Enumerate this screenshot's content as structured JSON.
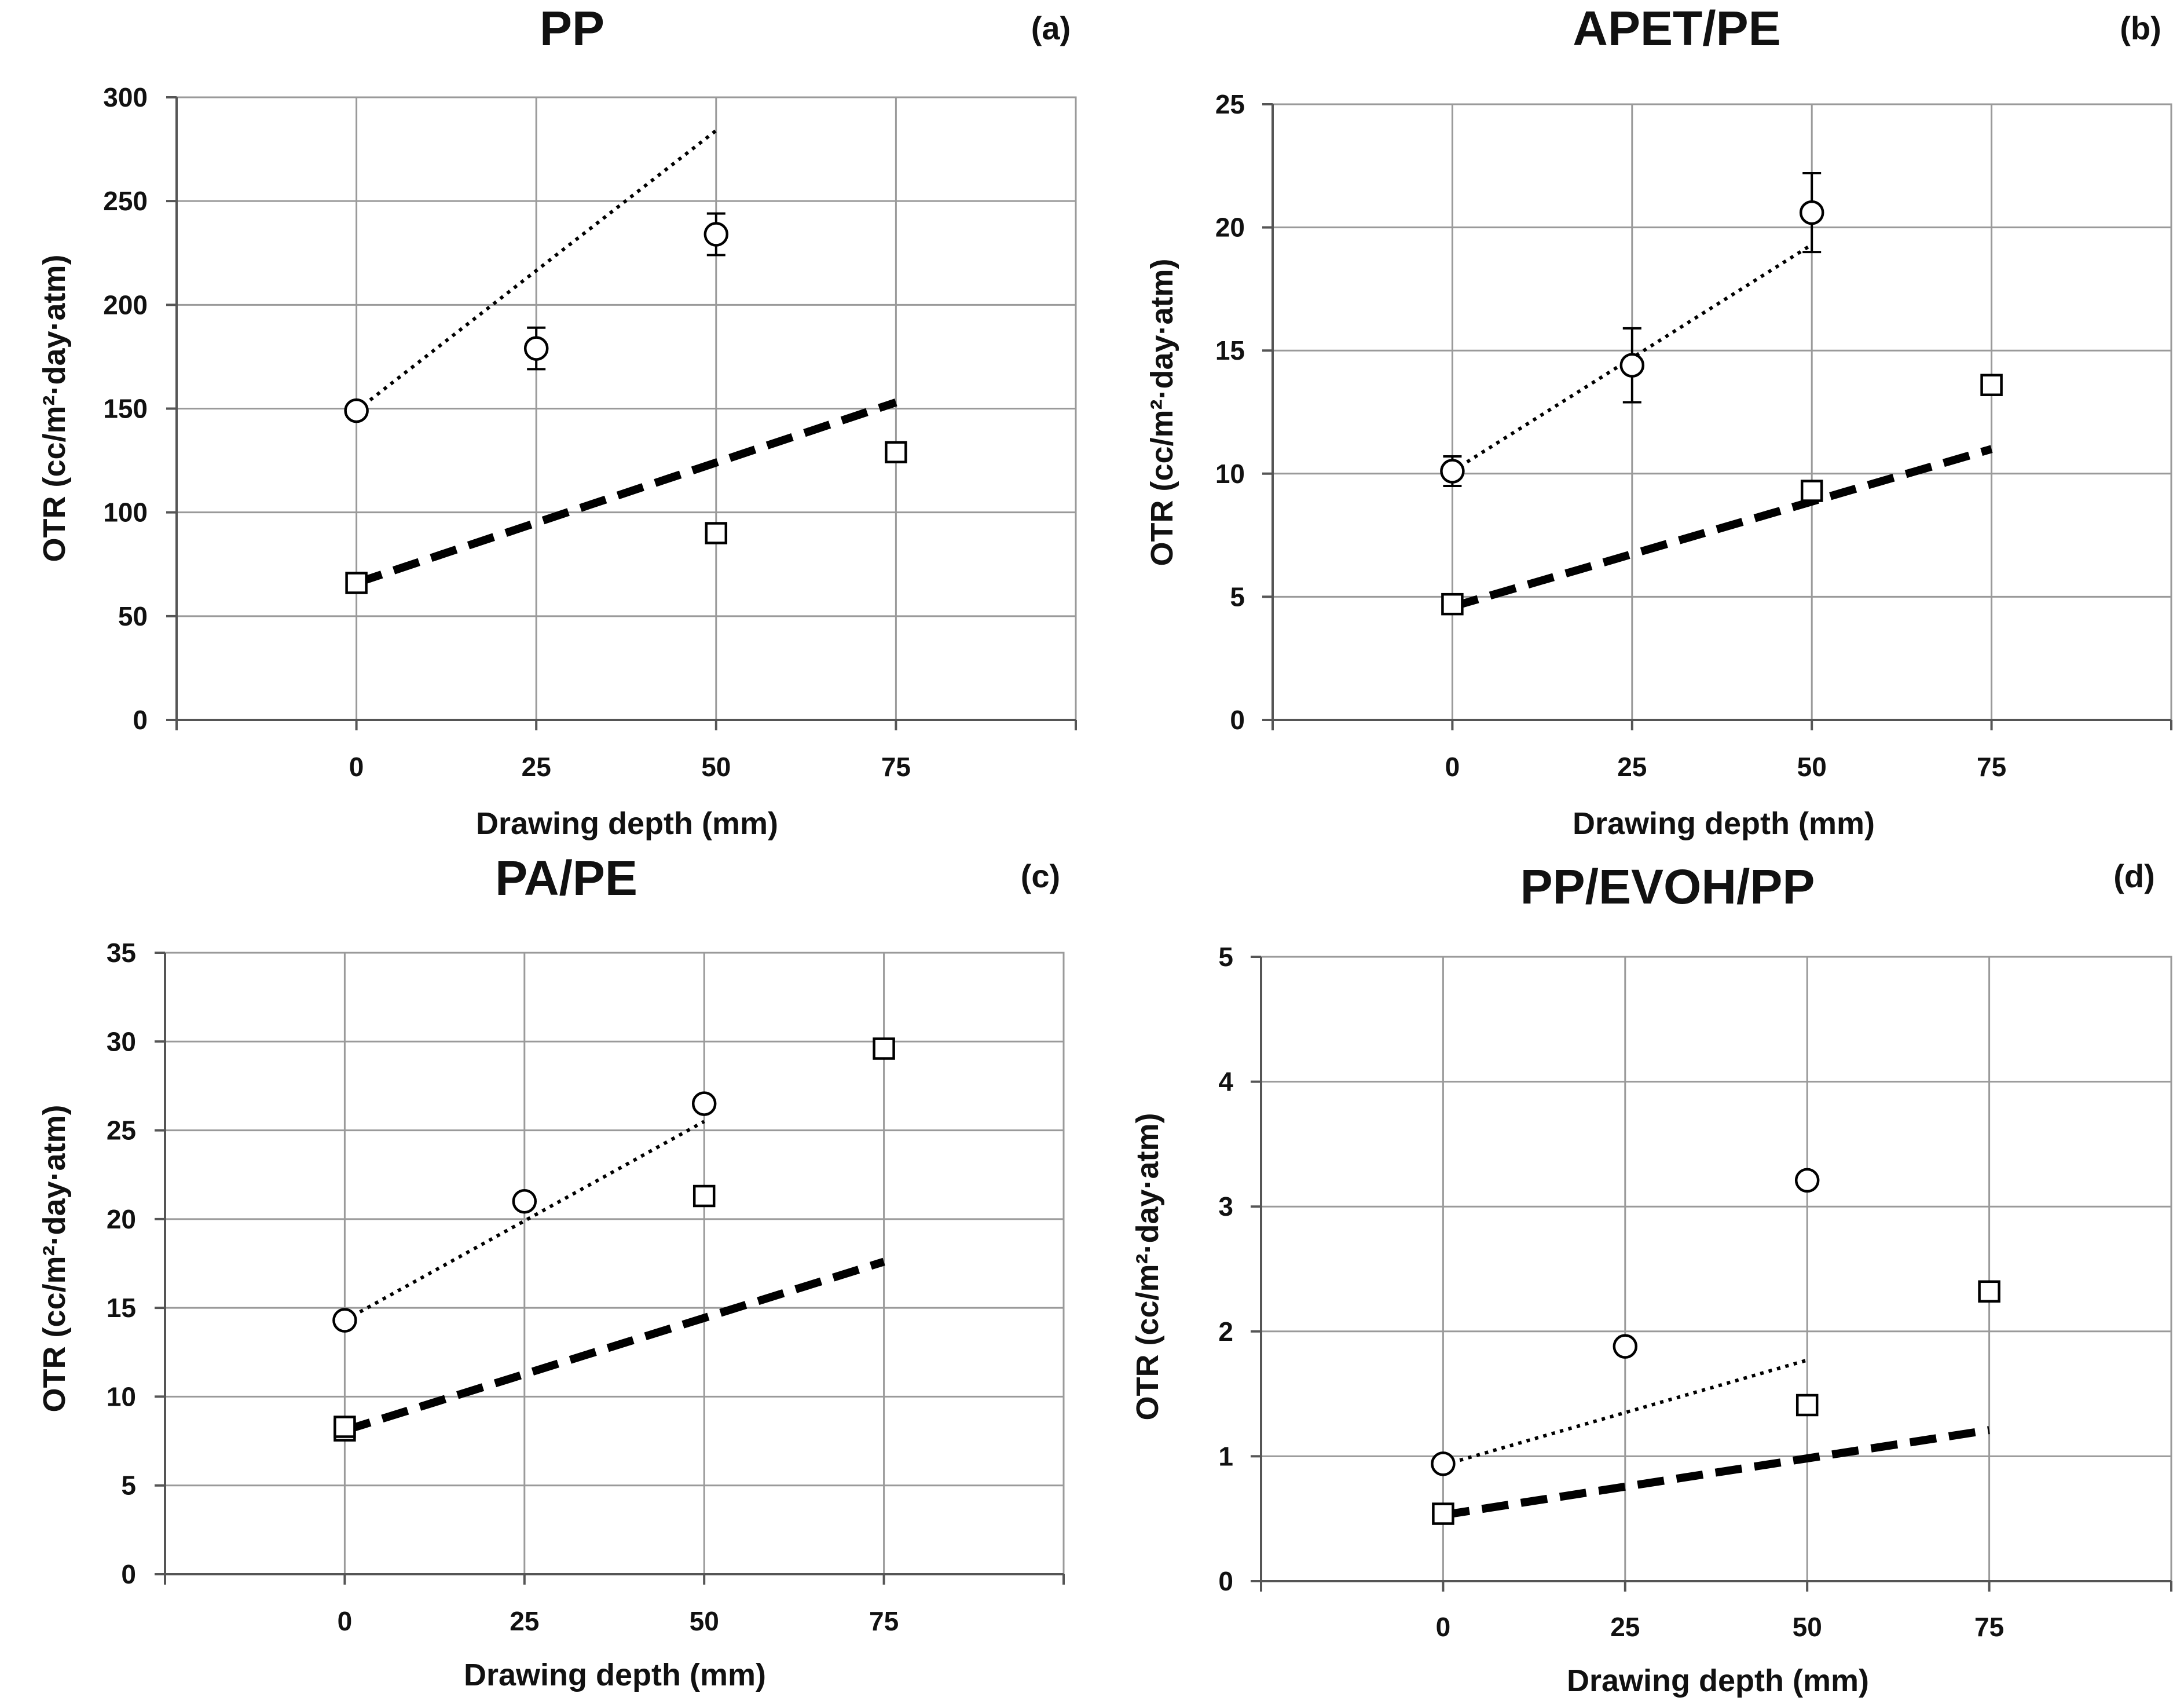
{
  "chart_data": [
    {
      "type": "scatter",
      "panel_label": "(a)",
      "title": "PP",
      "xlabel": "Drawing depth (mm)",
      "ylabel": "OTR (cc/m²·day·atm)",
      "xlim": [
        -25,
        100
      ],
      "ylim": [
        0,
        300
      ],
      "xticks": [
        0,
        25,
        50,
        75
      ],
      "yticks": [
        0,
        50,
        100,
        150,
        200,
        250,
        300
      ],
      "grid": true,
      "series": [
        {
          "name": "circles",
          "marker": "circle",
          "x": [
            0,
            25,
            50
          ],
          "y": [
            149,
            179,
            234
          ],
          "err": [
            0,
            10,
            10
          ]
        },
        {
          "name": "squares",
          "marker": "square",
          "x": [
            0,
            50,
            75
          ],
          "y": [
            66,
            90,
            129
          ],
          "err": [
            0,
            0,
            0
          ]
        }
      ],
      "trendlines": [
        {
          "style": "dotted",
          "x": [
            0,
            50
          ],
          "y": [
            149,
            284
          ]
        },
        {
          "style": "dashed",
          "x": [
            0,
            75
          ],
          "y": [
            66,
            153
          ]
        }
      ]
    },
    {
      "type": "scatter",
      "panel_label": "(b)",
      "title": "APET/PE",
      "xlabel": "Drawing depth (mm)",
      "ylabel": "OTR (cc/m²·day·atm)",
      "xlim": [
        -25,
        100
      ],
      "ylim": [
        0,
        25
      ],
      "xticks": [
        0,
        25,
        50,
        75
      ],
      "yticks": [
        0,
        5,
        10,
        15,
        20,
        25
      ],
      "grid": true,
      "series": [
        {
          "name": "circles",
          "marker": "circle",
          "x": [
            0,
            25,
            50
          ],
          "y": [
            10.1,
            14.4,
            20.6
          ],
          "err": [
            0.6,
            1.5,
            1.6
          ]
        },
        {
          "name": "squares",
          "marker": "square",
          "x": [
            0,
            50,
            75
          ],
          "y": [
            4.7,
            9.3,
            13.6
          ],
          "err": [
            0,
            0,
            0
          ]
        }
      ],
      "trendlines": [
        {
          "style": "dotted",
          "x": [
            0,
            50
          ],
          "y": [
            10.1,
            19.3
          ]
        },
        {
          "style": "dashed",
          "x": [
            0,
            75
          ],
          "y": [
            4.6,
            11.0
          ]
        }
      ]
    },
    {
      "type": "scatter",
      "panel_label": "(c)",
      "title": "PA/PE",
      "xlabel": "Drawing depth (mm)",
      "ylabel": "OTR (cc/m²·day·atm)",
      "xlim": [
        -25,
        100
      ],
      "ylim": [
        0,
        35
      ],
      "xticks": [
        0,
        25,
        50,
        75
      ],
      "yticks": [
        0,
        5,
        10,
        15,
        20,
        25,
        30,
        35
      ],
      "grid": true,
      "series": [
        {
          "name": "circles",
          "marker": "circle",
          "x": [
            0,
            25,
            50
          ],
          "y": [
            14.3,
            21.0,
            26.5
          ],
          "err": [
            0,
            0,
            0
          ]
        },
        {
          "name": "squares",
          "marker": "square",
          "x": [
            0,
            0,
            50,
            75
          ],
          "y": [
            8.1,
            8.3,
            21.3,
            29.6
          ],
          "err": [
            0,
            0,
            0,
            0
          ]
        }
      ],
      "trendlines": [
        {
          "style": "dotted",
          "x": [
            0,
            50
          ],
          "y": [
            14.3,
            25.5
          ]
        },
        {
          "style": "dashed",
          "x": [
            0,
            75
          ],
          "y": [
            8.1,
            17.6
          ]
        }
      ]
    },
    {
      "type": "scatter",
      "panel_label": "(d)",
      "title": "PP/EVOH/PP",
      "xlabel": "Drawing depth (mm)",
      "ylabel": "OTR (cc/m²·day·atm)",
      "xlim": [
        -25,
        100
      ],
      "ylim": [
        0,
        5
      ],
      "xticks": [
        0,
        25,
        50,
        75
      ],
      "yticks": [
        0,
        1,
        2,
        3,
        4,
        5
      ],
      "grid": true,
      "series": [
        {
          "name": "circles",
          "marker": "circle",
          "x": [
            0,
            25,
            50
          ],
          "y": [
            0.94,
            1.88,
            3.21
          ],
          "err": [
            0,
            0,
            0
          ]
        },
        {
          "name": "squares",
          "marker": "square",
          "x": [
            0,
            50,
            75
          ],
          "y": [
            0.54,
            1.41,
            2.32
          ],
          "err": [
            0,
            0,
            0
          ]
        }
      ],
      "trendlines": [
        {
          "style": "dotted",
          "x": [
            0,
            50
          ],
          "y": [
            0.93,
            1.77
          ]
        },
        {
          "style": "dashed",
          "x": [
            0,
            75
          ],
          "y": [
            0.53,
            1.21
          ]
        }
      ]
    }
  ]
}
